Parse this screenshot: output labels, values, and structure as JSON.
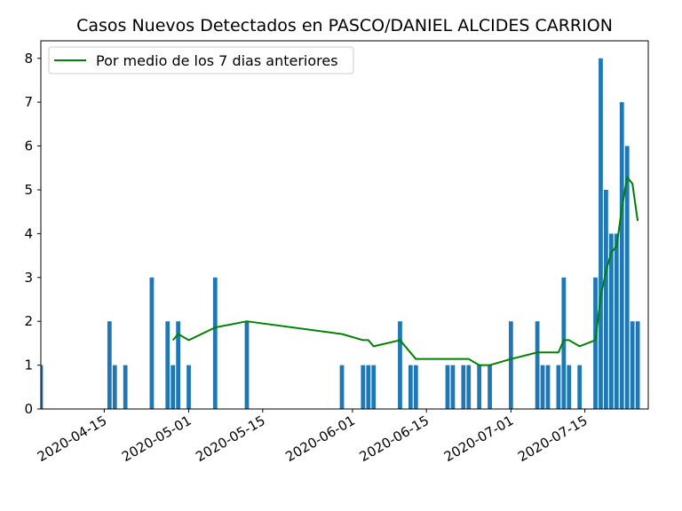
{
  "chart_data": {
    "type": "bar",
    "title": "Casos Nuevos Detectados en PASCO/DANIEL ALCIDES CARRION",
    "xlabel": "",
    "ylabel": "",
    "xlim": [
      "2020-04-03",
      "2020-07-27"
    ],
    "ylim": [
      0,
      8.4
    ],
    "x_ticks": [
      "2020-04-15",
      "2020-05-01",
      "2020-05-15",
      "2020-06-01",
      "2020-06-15",
      "2020-07-01",
      "2020-07-15"
    ],
    "y_ticks": [
      0,
      1,
      2,
      3,
      4,
      5,
      6,
      7,
      8
    ],
    "bar_color": "#1f77b4",
    "line_color": "#008000",
    "legend": {
      "position": "upper-left",
      "entries": [
        "Por medio de los 7 dias anteriores"
      ]
    },
    "series": [
      {
        "type": "bar",
        "points": [
          [
            "2020-04-03",
            1
          ],
          [
            "2020-04-16",
            2
          ],
          [
            "2020-04-17",
            1
          ],
          [
            "2020-04-19",
            1
          ],
          [
            "2020-04-24",
            3
          ],
          [
            "2020-04-27",
            2
          ],
          [
            "2020-04-28",
            1
          ],
          [
            "2020-04-29",
            2
          ],
          [
            "2020-05-01",
            1
          ],
          [
            "2020-05-06",
            3
          ],
          [
            "2020-05-12",
            2
          ],
          [
            "2020-05-30",
            1
          ],
          [
            "2020-06-03",
            1
          ],
          [
            "2020-06-04",
            1
          ],
          [
            "2020-06-05",
            1
          ],
          [
            "2020-06-10",
            2
          ],
          [
            "2020-06-12",
            1
          ],
          [
            "2020-06-13",
            1
          ],
          [
            "2020-06-19",
            1
          ],
          [
            "2020-06-20",
            1
          ],
          [
            "2020-06-22",
            1
          ],
          [
            "2020-06-23",
            1
          ],
          [
            "2020-06-25",
            1
          ],
          [
            "2020-06-27",
            1
          ],
          [
            "2020-07-01",
            2
          ],
          [
            "2020-07-06",
            2
          ],
          [
            "2020-07-07",
            1
          ],
          [
            "2020-07-08",
            1
          ],
          [
            "2020-07-10",
            1
          ],
          [
            "2020-07-11",
            3
          ],
          [
            "2020-07-12",
            1
          ],
          [
            "2020-07-14",
            1
          ],
          [
            "2020-07-17",
            3
          ],
          [
            "2020-07-18",
            8
          ],
          [
            "2020-07-19",
            5
          ],
          [
            "2020-07-20",
            4
          ],
          [
            "2020-07-21",
            4
          ],
          [
            "2020-07-22",
            7
          ],
          [
            "2020-07-23",
            6
          ],
          [
            "2020-07-24",
            2
          ],
          [
            "2020-07-25",
            2
          ]
        ]
      },
      {
        "type": "line",
        "name": "Por medio de los 7 dias anteriores",
        "points": [
          [
            "2020-04-28",
            1.57
          ],
          [
            "2020-04-29",
            1.71
          ],
          [
            "2020-05-01",
            1.57
          ],
          [
            "2020-05-06",
            1.86
          ],
          [
            "2020-05-12",
            2.0
          ],
          [
            "2020-05-30",
            1.71
          ],
          [
            "2020-06-03",
            1.57
          ],
          [
            "2020-06-04",
            1.57
          ],
          [
            "2020-06-05",
            1.43
          ],
          [
            "2020-06-10",
            1.57
          ],
          [
            "2020-06-13",
            1.14
          ],
          [
            "2020-06-19",
            1.14
          ],
          [
            "2020-06-20",
            1.14
          ],
          [
            "2020-06-22",
            1.14
          ],
          [
            "2020-06-23",
            1.14
          ],
          [
            "2020-06-25",
            1.0
          ],
          [
            "2020-06-27",
            1.0
          ],
          [
            "2020-07-01",
            1.14
          ],
          [
            "2020-07-06",
            1.29
          ],
          [
            "2020-07-07",
            1.29
          ],
          [
            "2020-07-08",
            1.29
          ],
          [
            "2020-07-10",
            1.29
          ],
          [
            "2020-07-11",
            1.57
          ],
          [
            "2020-07-12",
            1.57
          ],
          [
            "2020-07-14",
            1.43
          ],
          [
            "2020-07-17",
            1.57
          ],
          [
            "2020-07-18",
            2.57
          ],
          [
            "2020-07-19",
            3.14
          ],
          [
            "2020-07-20",
            3.57
          ],
          [
            "2020-07-21",
            3.71
          ],
          [
            "2020-07-22",
            4.57
          ],
          [
            "2020-07-23",
            5.29
          ],
          [
            "2020-07-24",
            5.14
          ],
          [
            "2020-07-25",
            4.29
          ]
        ]
      }
    ]
  }
}
